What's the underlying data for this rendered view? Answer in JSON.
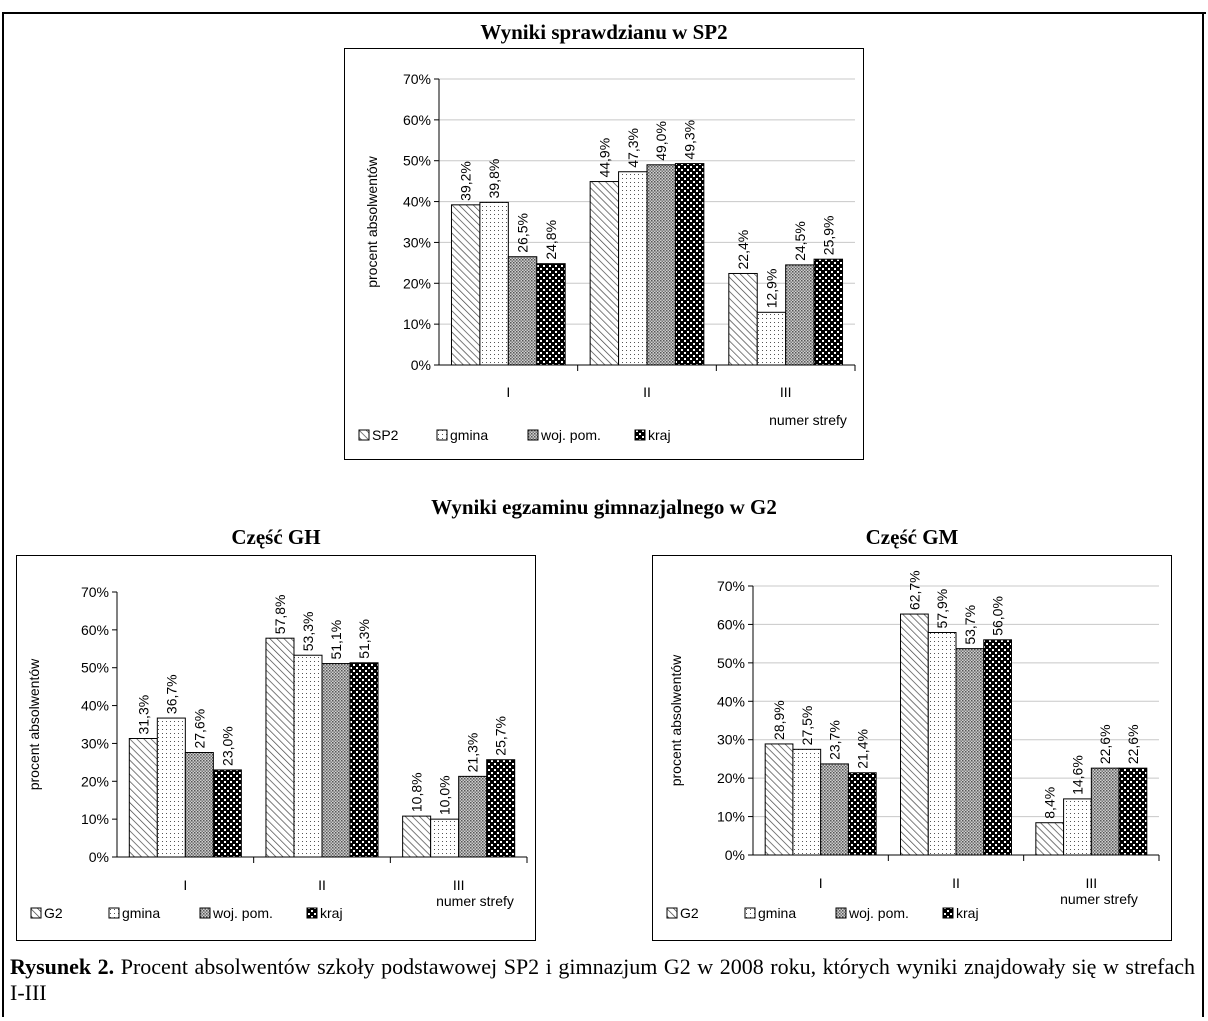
{
  "page": {
    "caption_label": "Rysunek 2.",
    "caption_text": "Procent absolwentów szkoły podstawowej SP2 i gimnazjum G2 w 2008 roku, których wyniki znajdowały się w strefach I-III",
    "section_title": "Wyniki egzaminu gimnazjalnego w G2"
  },
  "colors": {
    "bars": "#000000",
    "background": "#ffffff"
  },
  "chart_data": [
    {
      "type": "bar",
      "title": "Wyniki sprawdzianu w SP2",
      "xlabel": "numer strefy",
      "ylabel": "procent absolwentów",
      "ylim": [
        0,
        70
      ],
      "yticks": [
        "0%",
        "10%",
        "20%",
        "30%",
        "40%",
        "50%",
        "60%",
        "70%"
      ],
      "categories": [
        "I",
        "II",
        "III"
      ],
      "grid": true,
      "legend_position": "bottom",
      "series": [
        {
          "name": "SP2",
          "pattern": "diag",
          "values": [
            39.2,
            44.9,
            22.4
          ],
          "labels": [
            "39,2%",
            "44,9%",
            "22,4%"
          ]
        },
        {
          "name": "gmina",
          "pattern": "dots",
          "values": [
            39.8,
            47.3,
            12.9
          ],
          "labels": [
            "39,8%",
            "47,3%",
            "12,9%"
          ]
        },
        {
          "name": "woj. pom.",
          "pattern": "dense",
          "values": [
            26.5,
            49.0,
            24.5
          ],
          "labels": [
            "26,5%",
            "49,0%",
            "24,5%"
          ]
        },
        {
          "name": "kraj",
          "pattern": "checker",
          "values": [
            24.8,
            49.3,
            25.9
          ],
          "labels": [
            "24,8%",
            "49,3%",
            "25,9%"
          ]
        }
      ]
    },
    {
      "type": "bar",
      "title": "Część GH",
      "xlabel": "numer strefy",
      "ylabel": "procent absolwentów",
      "ylim": [
        0,
        70
      ],
      "yticks": [
        "0%",
        "10%",
        "20%",
        "30%",
        "40%",
        "50%",
        "60%",
        "70%"
      ],
      "categories": [
        "I",
        "II",
        "III"
      ],
      "grid": false,
      "legend_position": "bottom",
      "series": [
        {
          "name": "G2",
          "pattern": "diag",
          "values": [
            31.3,
            57.8,
            10.8
          ],
          "labels": [
            "31,3%",
            "57,8%",
            "10,8%"
          ]
        },
        {
          "name": "gmina",
          "pattern": "dots",
          "values": [
            36.7,
            53.3,
            10.0
          ],
          "labels": [
            "36,7%",
            "53,3%",
            "10,0%"
          ]
        },
        {
          "name": "woj. pom.",
          "pattern": "dense",
          "values": [
            27.6,
            51.1,
            21.3
          ],
          "labels": [
            "27,6%",
            "51,1%",
            "21,3%"
          ]
        },
        {
          "name": "kraj",
          "pattern": "checker",
          "values": [
            23.0,
            51.3,
            25.7
          ],
          "labels": [
            "23,0%",
            "51,3%",
            "25,7%"
          ]
        }
      ]
    },
    {
      "type": "bar",
      "title": "Część GM",
      "xlabel": "numer strefy",
      "ylabel": "procent absolwentów",
      "ylim": [
        0,
        70
      ],
      "yticks": [
        "0%",
        "10%",
        "20%",
        "30%",
        "40%",
        "50%",
        "60%",
        "70%"
      ],
      "categories": [
        "I",
        "II",
        "III"
      ],
      "grid": true,
      "legend_position": "bottom",
      "series": [
        {
          "name": "G2",
          "pattern": "diag",
          "values": [
            28.9,
            62.7,
            8.4
          ],
          "labels": [
            "28,9%",
            "62,7%",
            "8,4%"
          ]
        },
        {
          "name": "gmina",
          "pattern": "dots",
          "values": [
            27.5,
            57.9,
            14.6
          ],
          "labels": [
            "27,5%",
            "57,9%",
            "14,6%"
          ]
        },
        {
          "name": "woj. pom.",
          "pattern": "dense",
          "values": [
            23.7,
            53.7,
            22.6
          ],
          "labels": [
            "23,7%",
            "53,7%",
            "22,6%"
          ]
        },
        {
          "name": "kraj",
          "pattern": "checker",
          "values": [
            21.4,
            56.0,
            22.6
          ],
          "labels": [
            "21,4%",
            "56,0%",
            "22,6%"
          ]
        }
      ]
    }
  ]
}
